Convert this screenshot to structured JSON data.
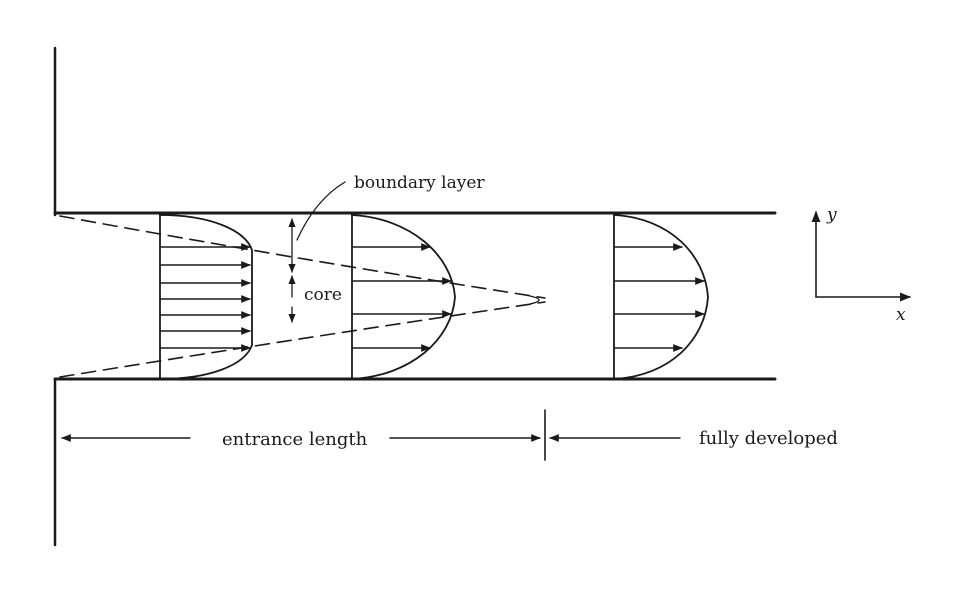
{
  "labels": {
    "boundary_layer": "boundary layer",
    "core": "core",
    "entrance_length": "entrance length",
    "fully_developed": "fully developed",
    "axis_x": "x",
    "axis_y": "y"
  },
  "colors": {
    "ink": "#1a1a1a",
    "background": "#ffffff"
  }
}
